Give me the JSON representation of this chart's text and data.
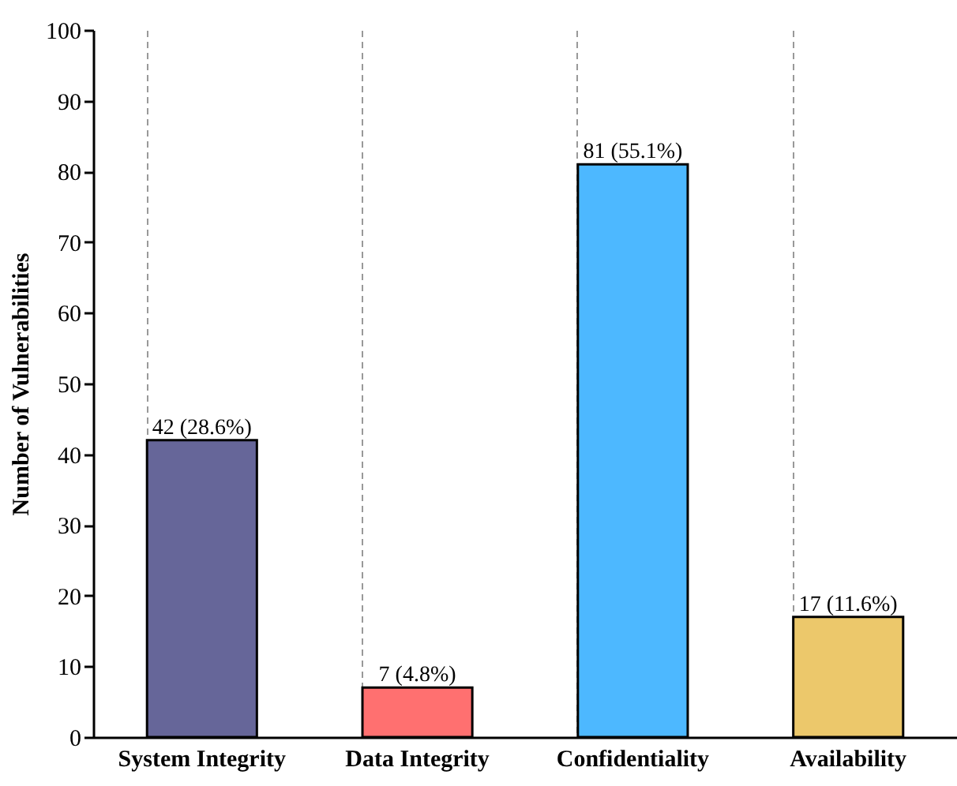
{
  "chart_data": {
    "type": "bar",
    "ylabel": "Number of Vulnerabilities",
    "categories": [
      "System Integrity",
      "Data Integrity",
      "Confidentiality",
      "Availability"
    ],
    "values": [
      42,
      7,
      81,
      17
    ],
    "colors": [
      "#666699",
      "#ff7070",
      "#4db8ff",
      "#ecc86b"
    ],
    "value_labels": [
      "42 (28.6%)",
      "7 (4.8%)",
      "81 (55.1%)",
      "17 (11.6%)"
    ],
    "ylim": [
      0,
      100
    ],
    "yticks": [
      0,
      10,
      20,
      30,
      40,
      50,
      60,
      70,
      80,
      90,
      100
    ],
    "grid": "x"
  }
}
